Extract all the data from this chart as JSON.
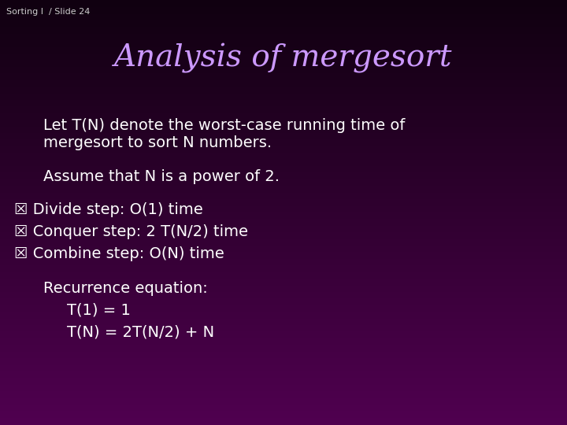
{
  "slide_label": "Sorting I  / Slide 24",
  "title": "Analysis of mergesort",
  "title_color": "#cc99ff",
  "title_fontsize": 28,
  "background_color_top": "#100010",
  "background_color_bottom": "#500050",
  "text_color": "#ffffff",
  "slide_label_color": "#cccccc",
  "slide_label_fontsize": 8,
  "paragraph1_line1": "Let T(N) denote the worst-case running time of",
  "paragraph1_line2": "mergesort to sort N numbers.",
  "paragraph2": "Assume that N is a power of 2.",
  "bullet1": "☒ Divide step: O(1) time",
  "bullet2": "☒ Conquer step: 2 T(N/2) time",
  "bullet3": "☒ Combine step: O(N) time",
  "recurrence_label": "Recurrence equation:",
  "recurrence_line1": "T(1) = 1",
  "recurrence_line2": "T(N) = 2T(N/2) + N",
  "body_fontsize": 14,
  "bullet_fontsize": 14,
  "recurrence_fontsize": 14
}
